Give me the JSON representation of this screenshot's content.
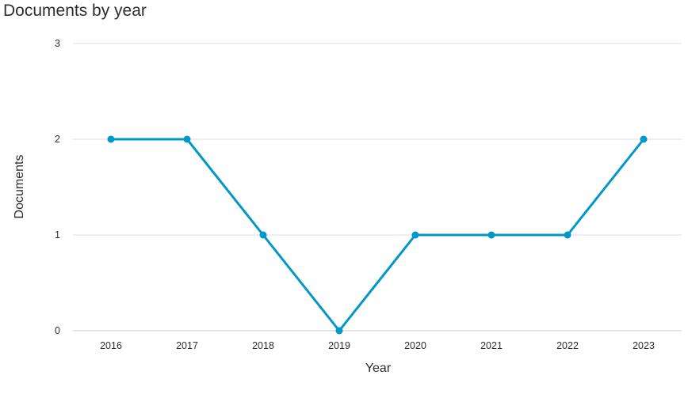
{
  "chart_data": {
    "type": "line",
    "title": "Documents by year",
    "xlabel": "Year",
    "ylabel": "Documents",
    "categories": [
      "2016",
      "2017",
      "2018",
      "2019",
      "2020",
      "2021",
      "2022",
      "2023"
    ],
    "series": [
      {
        "values": [
          2,
          2,
          1,
          0,
          1,
          1,
          1,
          2
        ]
      }
    ],
    "yticks": [
      0,
      1,
      2,
      3
    ],
    "ylim": [
      0,
      3
    ],
    "grid": true,
    "legend": "none",
    "colors": {
      "line": "#0098c8",
      "grid": "#dcdcdc",
      "axis": "#c8c8c8",
      "text": "#2e2e2e"
    }
  }
}
